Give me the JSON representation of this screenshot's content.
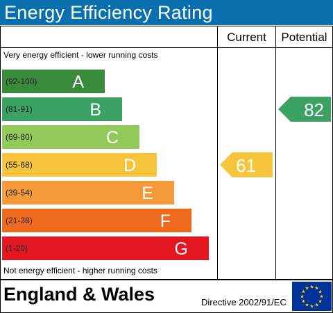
{
  "title": "Energy Efficiency Rating",
  "columns": {
    "current": "Current",
    "potential": "Potential"
  },
  "top_note": "Very energy efficient - lower running costs",
  "bottom_note": "Not energy efficient - higher running costs",
  "footer": {
    "region": "England & Wales",
    "directive": "Directive 2002/91/EC"
  },
  "colors": {
    "title_bar": "#0a6fad",
    "flag": "#003399",
    "stars": "#ffcc00"
  },
  "chart_data": {
    "type": "bar",
    "categories": [
      "A",
      "B",
      "C",
      "D",
      "E",
      "F",
      "G"
    ],
    "ranges": [
      "(92-100)",
      "(81-91)",
      "(69-80)",
      "(55-68)",
      "(39-54)",
      "(21-38)",
      "(1-20)"
    ],
    "band_colors": [
      "#3a8a3c",
      "#3aa262",
      "#93c95a",
      "#f6c53c",
      "#f59a3b",
      "#ee6a1f",
      "#e3171f"
    ],
    "current": {
      "value": 61,
      "band": "D",
      "color": "#f6c53c"
    },
    "potential": {
      "value": 82,
      "band": "B",
      "color": "#3aa262"
    }
  }
}
